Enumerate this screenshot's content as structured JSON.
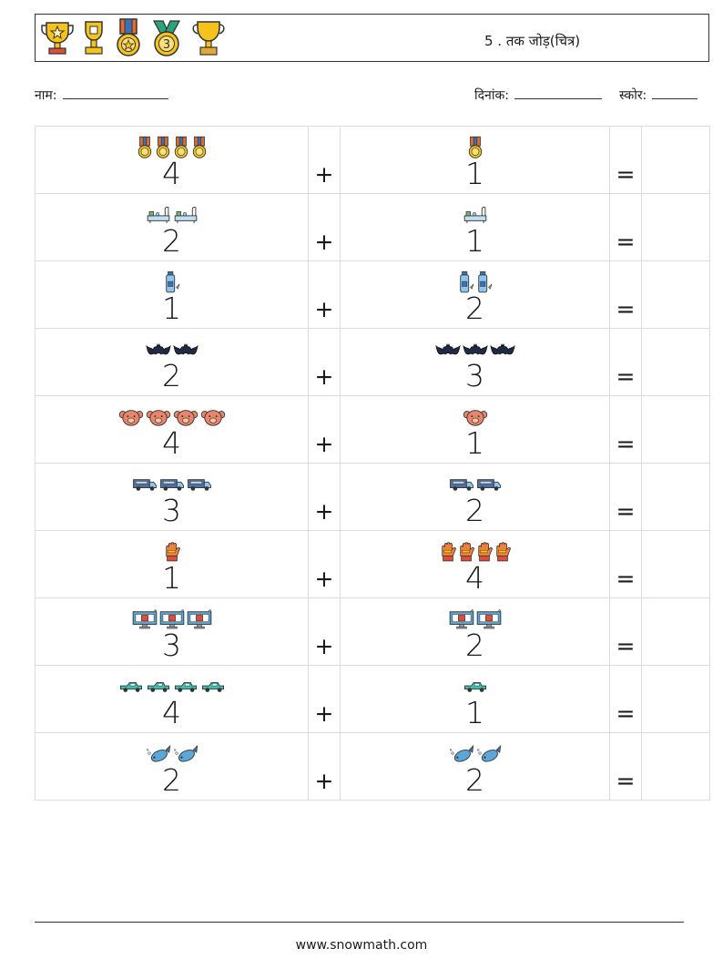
{
  "header": {
    "title": "5 . तक जोड़(चित्र)",
    "icons": [
      "trophy-star-icon",
      "trophy-cup-icon",
      "medal-star-icon",
      "medal-three-icon",
      "trophy-gold-icon"
    ]
  },
  "info": {
    "name_label": "नाम:",
    "date_label": "दिनांक:",
    "score_label": "स्कोर:"
  },
  "operators": {
    "plus": "+",
    "equals": "="
  },
  "problems": [
    {
      "icon": "medal-icon",
      "a": 4,
      "b": 1
    },
    {
      "icon": "bathtub-icon",
      "a": 2,
      "b": 1
    },
    {
      "icon": "bottle-icon",
      "a": 1,
      "b": 2
    },
    {
      "icon": "bat-icon",
      "a": 2,
      "b": 3
    },
    {
      "icon": "bear-face-icon",
      "a": 4,
      "b": 1
    },
    {
      "icon": "truck-icon",
      "a": 3,
      "b": 2
    },
    {
      "icon": "glove-icon",
      "a": 1,
      "b": 4
    },
    {
      "icon": "monitor-icon",
      "a": 3,
      "b": 2
    },
    {
      "icon": "car-icon",
      "a": 4,
      "b": 1
    },
    {
      "icon": "fish-icon",
      "a": 2,
      "b": 2
    }
  ],
  "footer": {
    "url": "www.snowmath.com"
  }
}
